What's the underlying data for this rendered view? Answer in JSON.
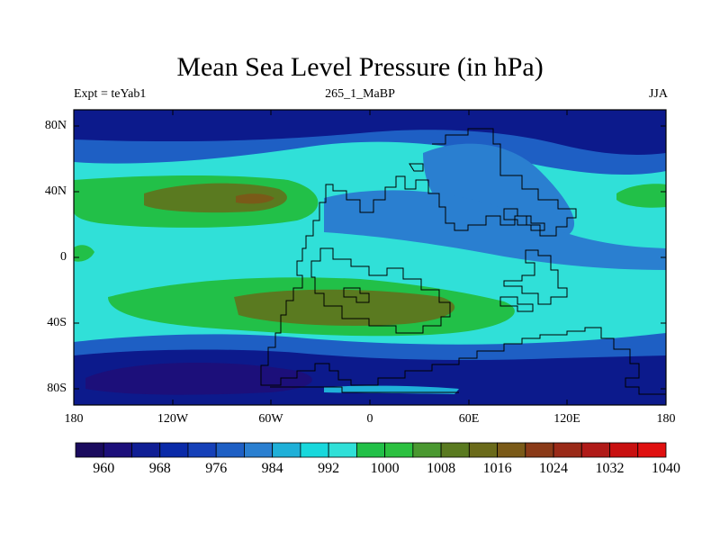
{
  "title": "Mean Sea Level Pressure (in hPa)",
  "subtitle_left": "Expt = teYab1",
  "subtitle_center": "265_1_MaBP",
  "subtitle_right": "JJA",
  "lat_ticks": [
    "80N",
    "40N",
    "0",
    "40S",
    "80S"
  ],
  "lon_ticks": [
    "180",
    "120W",
    "60W",
    "0",
    "60E",
    "120E",
    "180"
  ],
  "colorbar": {
    "colors": [
      "#1a0b5e",
      "#1c0f7a",
      "#101e94",
      "#0a2aa8",
      "#1540b8",
      "#1e5fc4",
      "#2a7fd0",
      "#1fb0d8",
      "#18d8dc",
      "#30e0d8",
      "#22c048",
      "#2cc040",
      "#4a9830",
      "#5a7a20",
      "#6a6a1a",
      "#7a5a18",
      "#8a3a18",
      "#9a2a18",
      "#b01a18",
      "#c81010",
      "#e01010"
    ],
    "labels": [
      "960",
      "968",
      "976",
      "984",
      "992",
      "1000",
      "1008",
      "1016",
      "1024",
      "1032",
      "1040"
    ]
  },
  "palette": {
    "deep": "#0c1a8c",
    "dark": "#0a2aa8",
    "mid": "#1e5fc4",
    "blue": "#2a7fd0",
    "light": "#1fb0d8",
    "cyan": "#30e0d8",
    "green": "#22c048",
    "olive": "#5a7a20",
    "brown": "#7a5a18",
    "verydeep": "#1c0f7a"
  }
}
